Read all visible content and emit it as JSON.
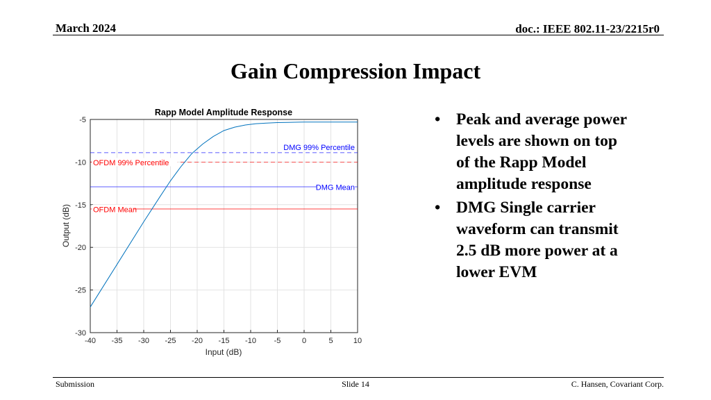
{
  "header": {
    "date": "March 2024",
    "doc_id": "doc.: IEEE 802.11-23/2215r0"
  },
  "slide": {
    "title": "Gain Compression Impact",
    "bullets": [
      "Peak and average power levels are shown on top of the Rapp Model amplitude response",
      "DMG Single carrier waveform can transmit 2.5 dB more power at a lower EVM"
    ]
  },
  "footer": {
    "left": "Submission",
    "center": "Slide 14",
    "right": "C. Hansen, Covariant Corp."
  },
  "chart_data": {
    "type": "line",
    "title": "Rapp Model Amplitude Response",
    "xlabel": "Input (dB)",
    "ylabel": "Output (dB)",
    "xlim": [
      -40,
      10
    ],
    "ylim": [
      -30,
      -5
    ],
    "xticks": [
      -40,
      -35,
      -30,
      -25,
      -20,
      -15,
      -10,
      -5,
      0,
      5,
      10
    ],
    "yticks": [
      -30,
      -25,
      -20,
      -15,
      -10,
      -5
    ],
    "grid": true,
    "series": [
      {
        "color": "#0072bd",
        "x": [
          -40,
          -35,
          -30,
          -27,
          -25,
          -23,
          -21,
          -19,
          -17,
          -15,
          -13,
          -11,
          -9,
          -7,
          -5,
          -3,
          -1,
          0,
          2,
          4,
          6,
          8,
          10
        ],
        "y": [
          -27.0,
          -22.0,
          -17.0,
          -14.1,
          -12.2,
          -10.5,
          -9.0,
          -7.9,
          -7.0,
          -6.3,
          -5.9,
          -5.65,
          -5.5,
          -5.42,
          -5.37,
          -5.34,
          -5.32,
          -5.31,
          -5.3,
          -5.3,
          -5.3,
          -5.3,
          -5.3
        ]
      }
    ],
    "reference_lines": [
      {
        "label": "DMG 99% Percentile",
        "y": -8.9,
        "color": "#0000ff",
        "style": "dashed"
      },
      {
        "label": "OFDM 99% Percentile",
        "y": -10.0,
        "color": "#ff0000",
        "style": "dashed"
      },
      {
        "label": "DMG Mean",
        "y": -12.9,
        "color": "#0000ff",
        "style": "solid"
      },
      {
        "label": "OFDM Mean",
        "y": -15.5,
        "color": "#ff0000",
        "style": "solid"
      }
    ]
  }
}
